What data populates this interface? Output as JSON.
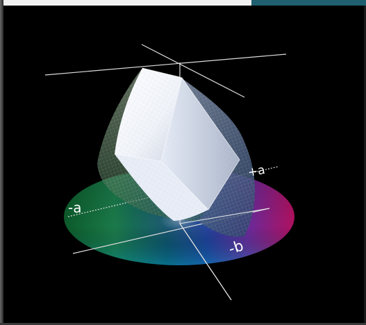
{
  "labels": {
    "neg_a": "-a",
    "pos_a": "+a",
    "neg_b": "-b"
  },
  "colors": {
    "background": "#000000",
    "frame_top": "#f2f2f2",
    "frame_tab": "#1f5f6f",
    "axis_line": "#dddddd",
    "solid_fill": "#ffffff",
    "wireframe": "#b8c4d8"
  }
}
